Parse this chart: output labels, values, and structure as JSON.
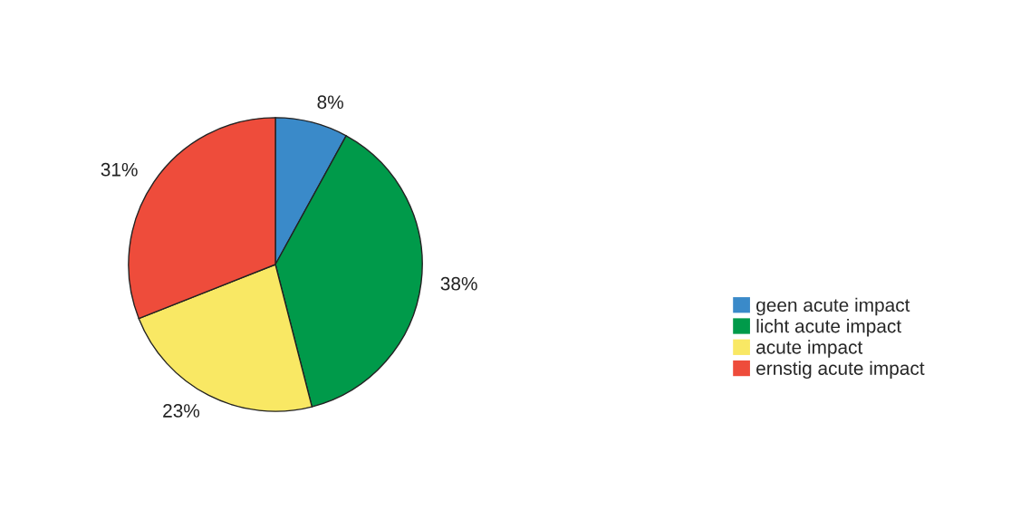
{
  "chart_data": {
    "type": "pie",
    "categories": [
      "geen acute impact",
      "licht acute impact",
      "acute impact",
      "ernstig acute impact"
    ],
    "values": [
      8,
      38,
      23,
      31
    ],
    "colors": [
      "#3a8ac9",
      "#009a4a",
      "#f9e864",
      "#ee4c3b"
    ],
    "value_labels": [
      "8%",
      "38%",
      "23%",
      "31%"
    ],
    "legend": "right"
  }
}
